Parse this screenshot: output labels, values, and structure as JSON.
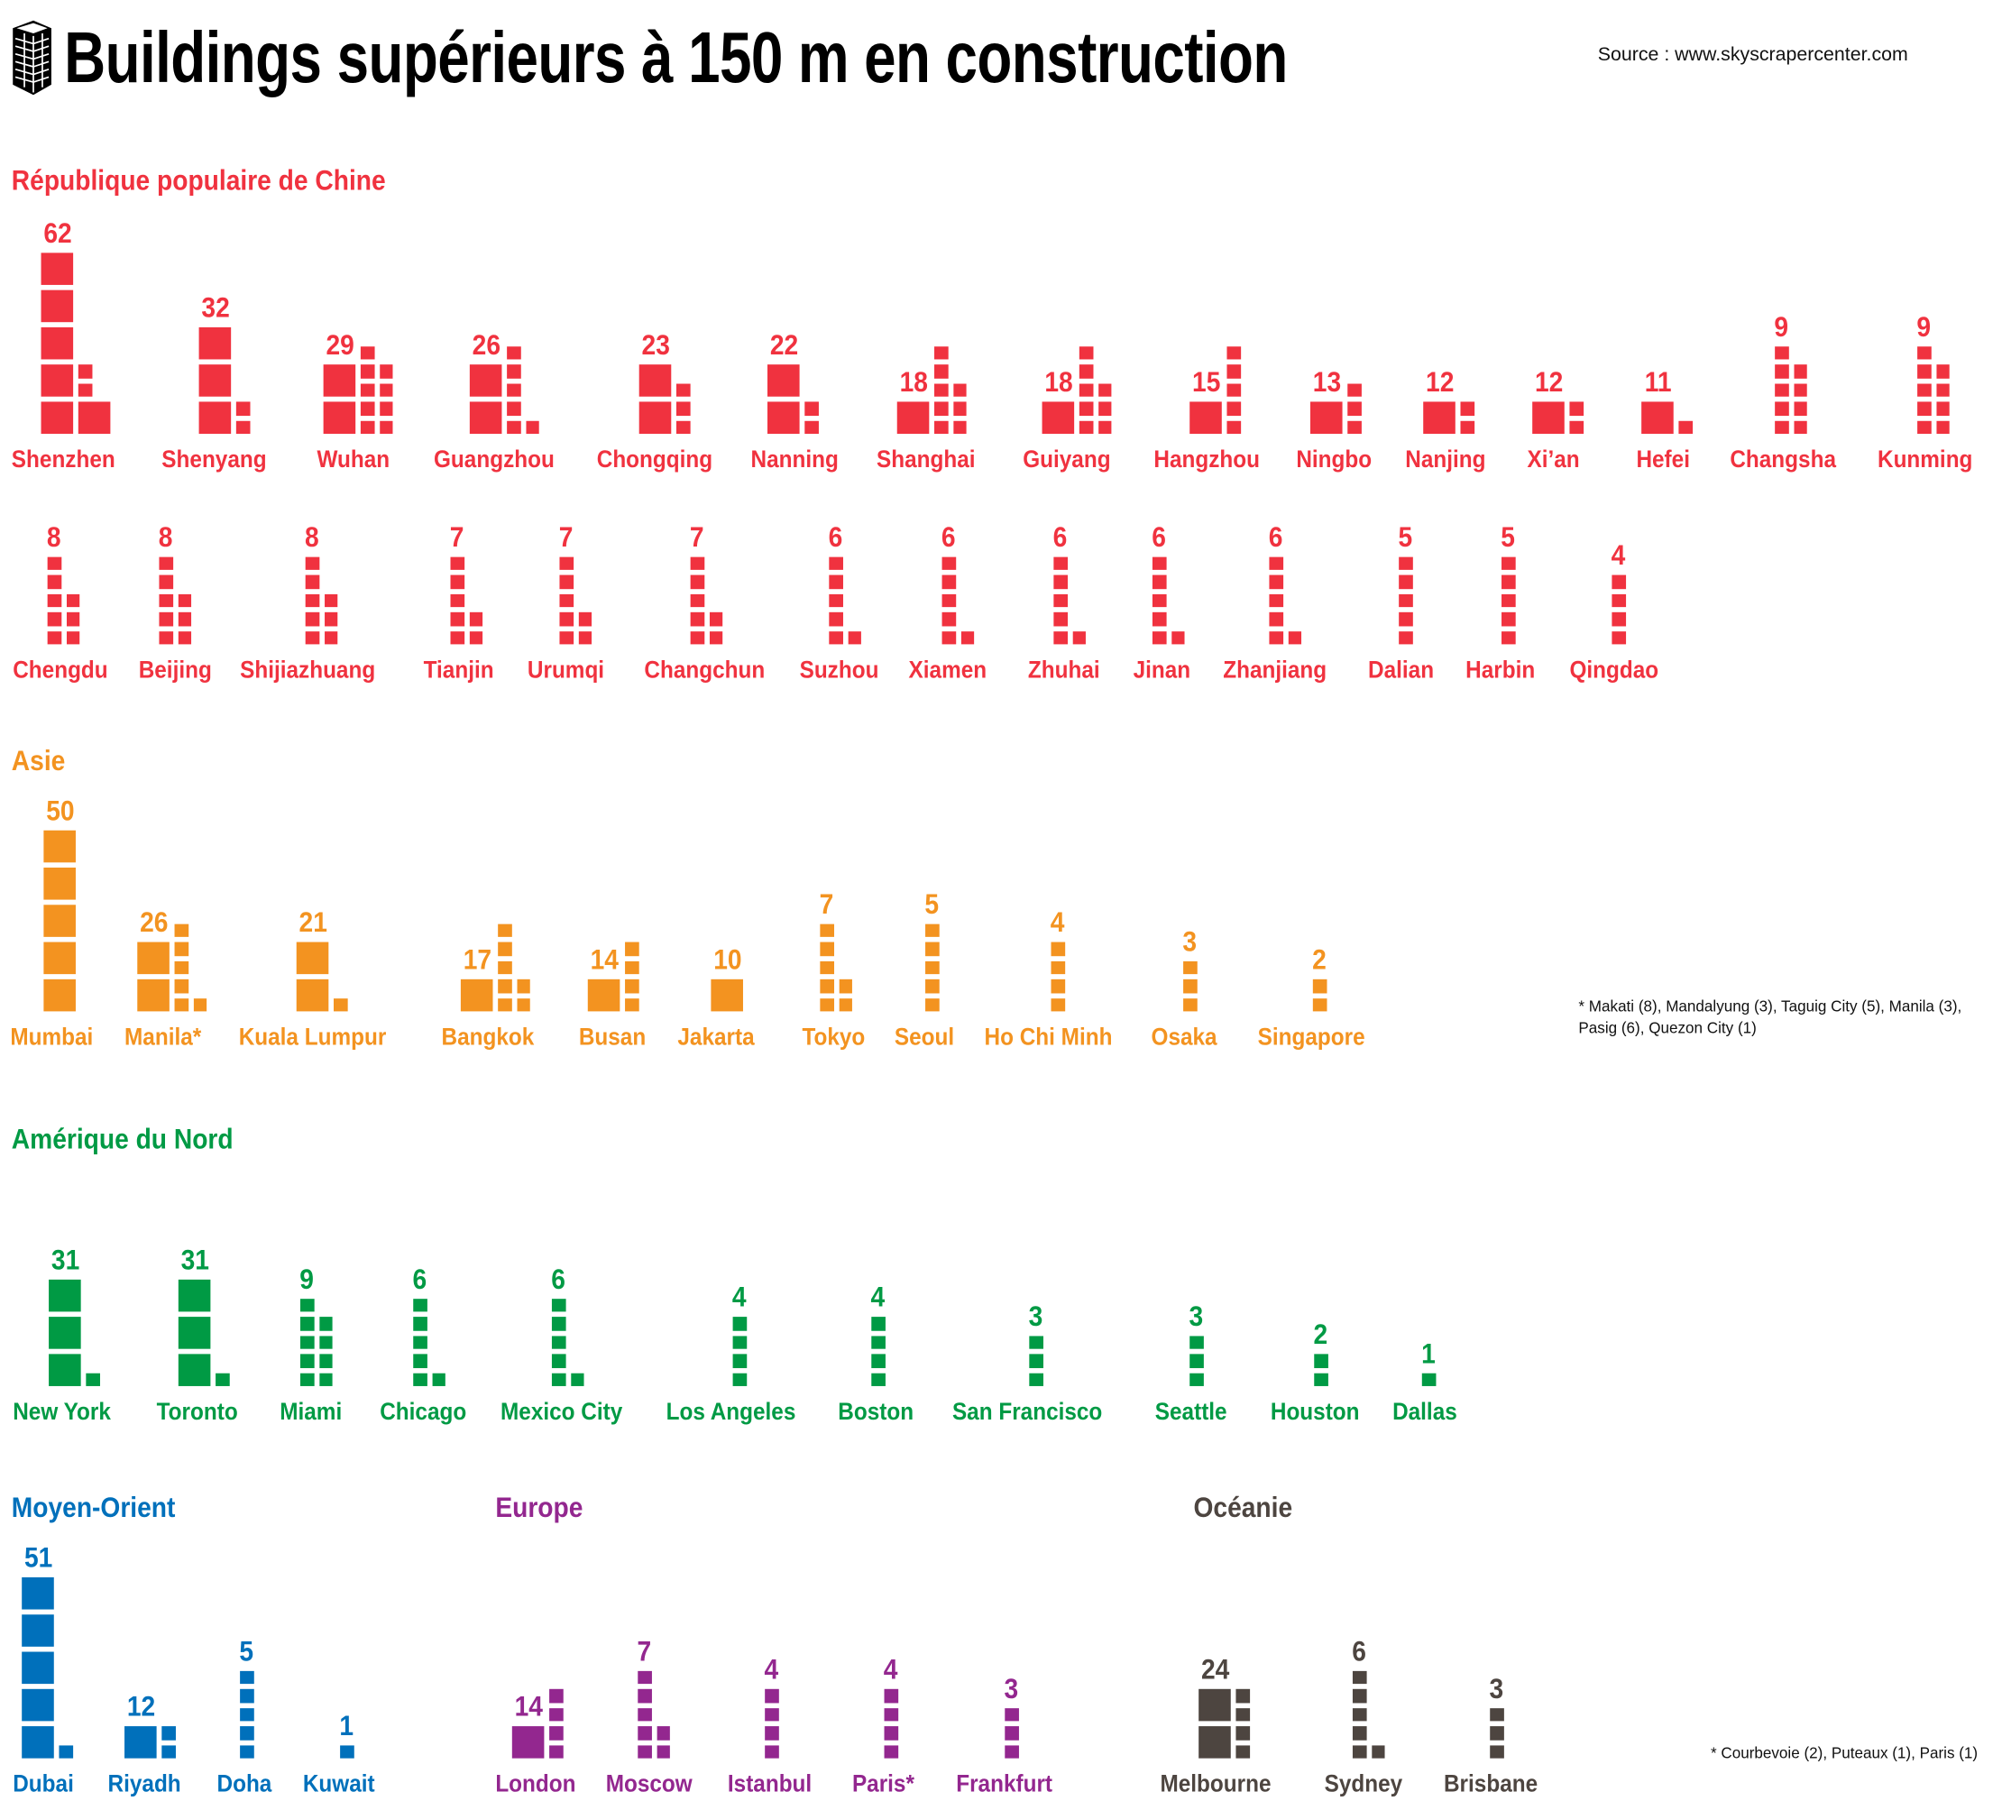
{
  "title": "Buildings supérieurs à 150 m en construction",
  "source": "Source : www.skyscrapercenter.com",
  "icon": "skyscraper-icon",
  "chart_data": {
    "type": "pictogram",
    "unit_large": 10,
    "unit_small": 1,
    "sections": [
      {
        "name": "République populaire de Chine",
        "color": "#f0323f",
        "cities": [
          {
            "name": "Shenzhen",
            "value": 62
          },
          {
            "name": "Shenyang",
            "value": 32
          },
          {
            "name": "Wuhan",
            "value": 29
          },
          {
            "name": "Guangzhou",
            "value": 26
          },
          {
            "name": "Chongqing",
            "value": 23
          },
          {
            "name": "Nanning",
            "value": 22
          },
          {
            "name": "Shanghai",
            "value": 18
          },
          {
            "name": "Guiyang",
            "value": 18
          },
          {
            "name": "Hangzhou",
            "value": 15
          },
          {
            "name": "Ningbo",
            "value": 13
          },
          {
            "name": "Nanjing",
            "value": 12
          },
          {
            "name": "Xi’an",
            "value": 12
          },
          {
            "name": "Hefei",
            "value": 11
          },
          {
            "name": "Changsha",
            "value": 9
          },
          {
            "name": "Kunming",
            "value": 9
          },
          {
            "name": "Chengdu",
            "value": 8
          },
          {
            "name": "Beijing",
            "value": 8
          },
          {
            "name": "Shijiazhuang",
            "value": 8
          },
          {
            "name": "Tianjin",
            "value": 7
          },
          {
            "name": "Urumqi",
            "value": 7
          },
          {
            "name": "Changchun",
            "value": 7
          },
          {
            "name": "Suzhou",
            "value": 6
          },
          {
            "name": "Xiamen",
            "value": 6
          },
          {
            "name": "Zhuhai",
            "value": 6
          },
          {
            "name": "Jinan",
            "value": 6
          },
          {
            "name": "Zhanjiang",
            "value": 6
          },
          {
            "name": "Dalian",
            "value": 5
          },
          {
            "name": "Harbin",
            "value": 5
          },
          {
            "name": "Qingdao",
            "value": 4
          }
        ]
      },
      {
        "name": "Asie",
        "color": "#f39320",
        "note": "* Makati (8), Mandalyung (3), Taguig City (5), Manila (3), Pasig (6), Quezon City (1)",
        "cities": [
          {
            "name": "Mumbai",
            "value": 50
          },
          {
            "name": "Manila*",
            "value": 26
          },
          {
            "name": "Kuala Lumpur",
            "value": 21
          },
          {
            "name": "Bangkok",
            "value": 17
          },
          {
            "name": "Busan",
            "value": 14
          },
          {
            "name": "Jakarta",
            "value": 10
          },
          {
            "name": "Tokyo",
            "value": 7
          },
          {
            "name": "Seoul",
            "value": 5
          },
          {
            "name": "Ho Chi Minh",
            "value": 4
          },
          {
            "name": "Osaka",
            "value": 3
          },
          {
            "name": "Singapore",
            "value": 2
          }
        ]
      },
      {
        "name": "Amérique du Nord",
        "color": "#009a44",
        "cities": [
          {
            "name": "New York",
            "value": 31
          },
          {
            "name": "Toronto",
            "value": 31
          },
          {
            "name": "Miami",
            "value": 9
          },
          {
            "name": "Chicago",
            "value": 6
          },
          {
            "name": "Mexico City",
            "value": 6
          },
          {
            "name": "Los Angeles",
            "value": 4
          },
          {
            "name": "Boston",
            "value": 4
          },
          {
            "name": "San Francisco",
            "value": 3
          },
          {
            "name": "Seattle",
            "value": 3
          },
          {
            "name": "Houston",
            "value": 2
          },
          {
            "name": "Dallas",
            "value": 1
          }
        ]
      },
      {
        "name": "Moyen-Orient",
        "color": "#0070bb",
        "cities": [
          {
            "name": "Dubai",
            "value": 51
          },
          {
            "name": "Riyadh",
            "value": 12
          },
          {
            "name": "Doha",
            "value": 5
          },
          {
            "name": "Kuwait",
            "value": 1
          }
        ]
      },
      {
        "name": "Europe",
        "color": "#93278f",
        "note": "* Courbevoie (2), Puteaux (1), Paris (1)",
        "cities": [
          {
            "name": "London",
            "value": 14
          },
          {
            "name": "Moscow",
            "value": 7
          },
          {
            "name": "Istanbul",
            "value": 4
          },
          {
            "name": "Paris*",
            "value": 4
          },
          {
            "name": "Frankfurt",
            "value": 3
          }
        ]
      },
      {
        "name": "Océanie",
        "color": "#4d4540",
        "cities": [
          {
            "name": "Melbourne",
            "value": 24
          },
          {
            "name": "Sydney",
            "value": 6
          },
          {
            "name": "Brisbane",
            "value": 3
          }
        ]
      }
    ]
  }
}
